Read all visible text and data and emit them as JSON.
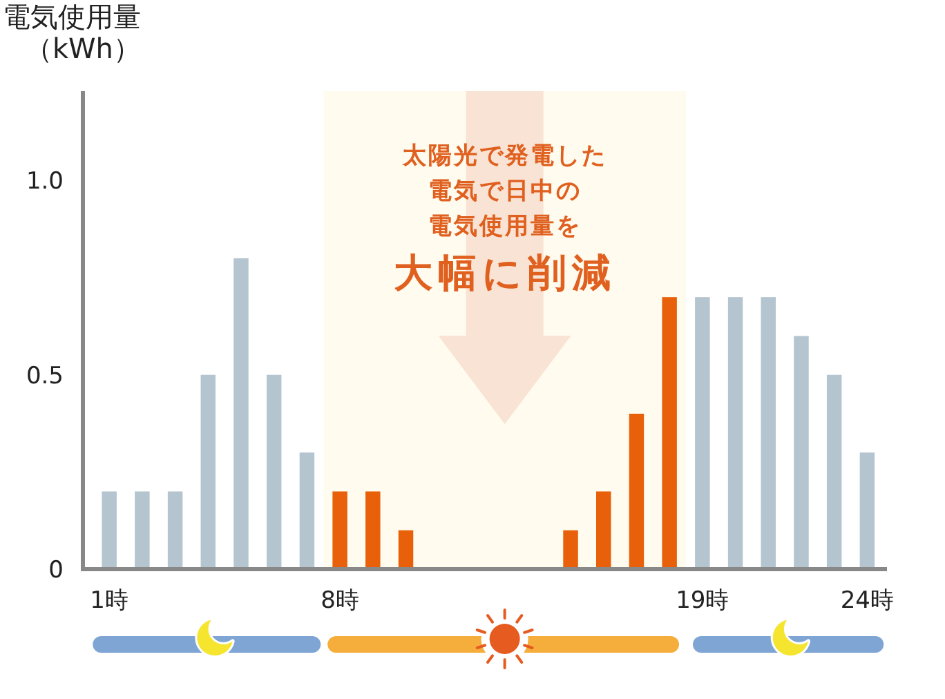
{
  "chart_data": {
    "type": "bar",
    "ylabel": "電気使用量（kWh）",
    "xlim": [
      0.2,
      24.6
    ],
    "xticks": [
      {
        "value": 1,
        "label": "1時"
      },
      {
        "value": 8,
        "label": "8時"
      },
      {
        "value": 19,
        "label": "19時"
      },
      {
        "value": 24,
        "label": "24時"
      }
    ],
    "ylim": [
      0,
      1.23
    ],
    "yticks": [
      0,
      0.5,
      {
        "value": 1,
        "label": "1.0"
      }
    ],
    "series": [
      {
        "color": "#b4c5cf",
        "x": [
          1,
          2,
          3,
          4,
          5,
          6,
          7,
          19,
          20,
          21,
          22,
          23,
          24
        ],
        "values": [
          0.2,
          0.2,
          0.2,
          0.5,
          0.8,
          0.5,
          0.3,
          0.7,
          0.7,
          0.7,
          0.6,
          0.5,
          0.3
        ]
      },
      {
        "color": "#e8600a",
        "x": [
          8,
          9,
          10,
          15,
          16,
          17,
          18
        ],
        "values": [
          0.2,
          0.2,
          0.1,
          0.1,
          0.2,
          0.4,
          0.7
        ]
      }
    ],
    "bands": [
      {
        "axis": "x",
        "from": 7.5,
        "to": 18.5,
        "color": "#fffbee"
      }
    ],
    "annotations": [
      "太陽光で発電した",
      "電気で日中の",
      "電気使用量を",
      "大幅に削減"
    ]
  }
}
